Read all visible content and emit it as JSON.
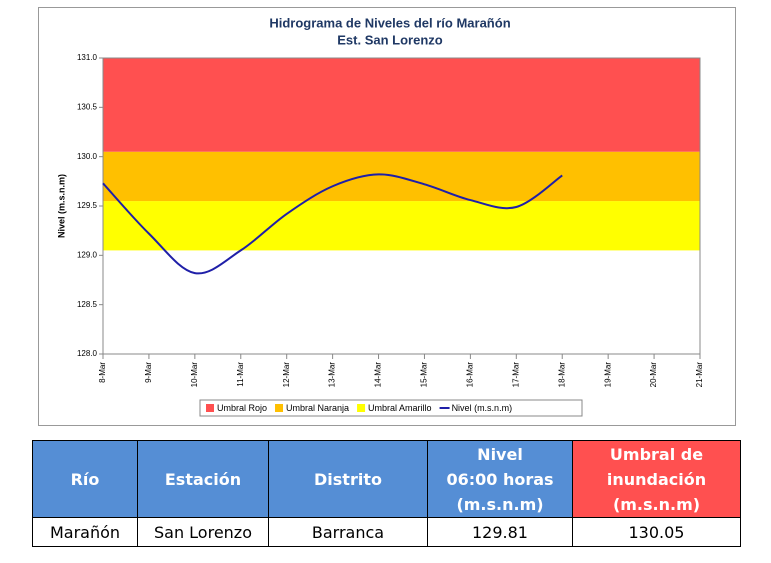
{
  "chart_data": {
    "type": "line",
    "title": "Hidrograma de Niveles del río Marañón",
    "subtitle": "Est. San Lorenzo",
    "y_label": "Nivel (m.s.n.m)",
    "categories": [
      "8-Mar",
      "9-Mar",
      "10-Mar",
      "11-Mar",
      "12-Mar",
      "13-Mar",
      "14-Mar",
      "15-Mar",
      "16-Mar",
      "17-Mar",
      "18-Mar",
      "19-Mar",
      "20-Mar",
      "21-Mar"
    ],
    "bands": [
      {
        "name": "Umbral Rojo",
        "color": "#ff5050",
        "from": 130.05
      },
      {
        "name": "Umbral Naranja",
        "color": "#ffc000",
        "from": 129.55
      },
      {
        "name": "Umbral Amarillo",
        "color": "#ffff00",
        "from": 129.05
      }
    ],
    "series": [
      {
        "name": "Nivel (m.s.n.m)",
        "color": "#1f1fa8",
        "values": [
          129.73,
          129.22,
          128.82,
          129.05,
          129.42,
          129.7,
          129.82,
          129.72,
          129.56,
          129.49,
          129.81,
          null,
          null,
          null
        ]
      }
    ],
    "ylim": [
      128.0,
      131.0
    ],
    "yticks": [
      {
        "value": 128.0,
        "label": "128.0"
      },
      {
        "value": 128.5,
        "label": "128.5"
      },
      {
        "value": 129.0,
        "label": "129.0"
      },
      {
        "value": 129.5,
        "label": "129.5"
      },
      {
        "value": 130.0,
        "label": "130.0"
      },
      {
        "value": 130.5,
        "label": "130.5"
      },
      {
        "value": 131.0,
        "label": "131.0"
      }
    ],
    "legend": "bottom",
    "grid": false
  },
  "table": {
    "header": [
      "Río",
      "Estación",
      "Distrito",
      "Nivel\n06:00 horas\n(m.s.n.m)",
      "Umbral de\ninundación\n(m.s.n.m)"
    ],
    "rows": [
      [
        "Marañón",
        "San Lorenzo",
        "Barranca",
        "129.81",
        "130.05"
      ]
    ]
  }
}
